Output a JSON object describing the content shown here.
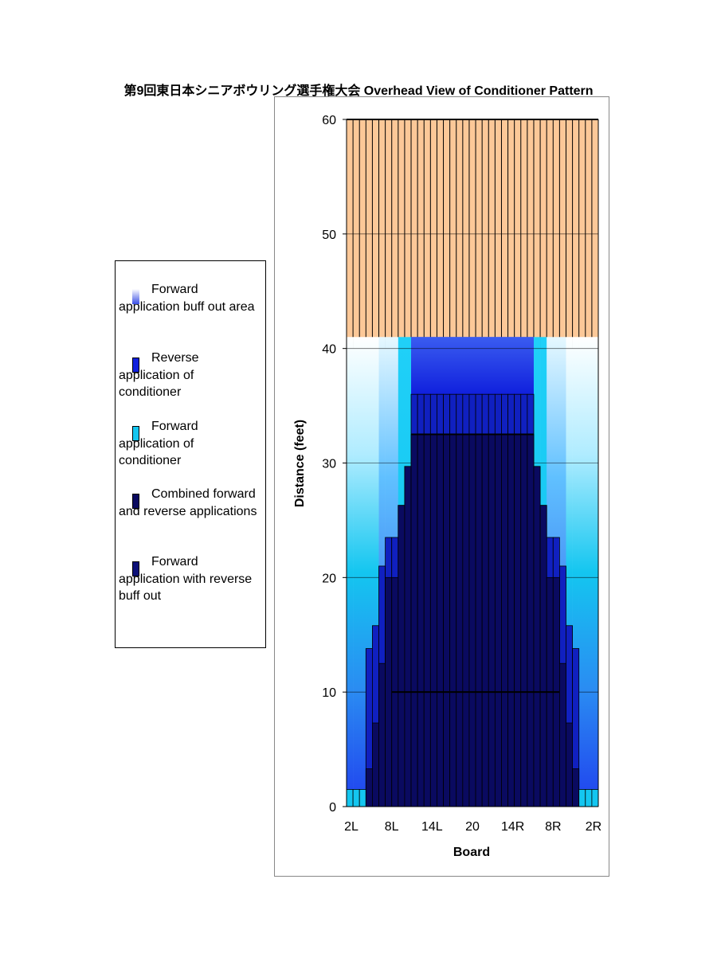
{
  "chart_data": {
    "type": "heatmap",
    "title": "第9回東日本シニアボウリング選手権大会 Overhead View of Conditioner Pattern",
    "xlabel": "Board",
    "ylabel": "Distance (feet)",
    "ylim": [
      0,
      60
    ],
    "yticks": [
      "0",
      "10",
      "20",
      "30",
      "40",
      "50",
      "60"
    ],
    "xticks": [
      "2L",
      "8L",
      "14L",
      "20",
      "14R",
      "8R",
      "2R"
    ],
    "boards": 39,
    "gridlines": true,
    "legend_position": "left",
    "series": [
      {
        "name": "Forward application buff out area",
        "color": "#3a4fe6"
      },
      {
        "name": "Reverse application of conditioner",
        "color": "#1020dd"
      },
      {
        "name": "Forward application of conditioner",
        "color": "#14c6f0"
      },
      {
        "name": "Combined forward and reverse applications",
        "color": "#0a0a60"
      },
      {
        "name": "Forward application with reverse buff out",
        "color": "#0c1078"
      }
    ],
    "oil_pattern_length_feet": 41,
    "lane_length_feet": 60,
    "combined_heights_feet": [
      1.5,
      1.5,
      1.5,
      3.3,
      7.3,
      12.5,
      20,
      20,
      26.3,
      29.7,
      32.5,
      32.5,
      32.5,
      32.5,
      32.5,
      32.5,
      32.5,
      32.5,
      32.5,
      32.5,
      32.5,
      32.5,
      32.5,
      32.5,
      32.5,
      32.5,
      32.5,
      32.5,
      32.5,
      29.7,
      26.3,
      20,
      20,
      12.5,
      7.3,
      3.3,
      1.5,
      1.5,
      1.5
    ],
    "reverse_buffout_heights_feet": [
      0,
      0,
      0,
      13.8,
      15.8,
      21,
      23.5,
      23.5,
      26.3,
      29.7,
      36,
      36,
      36,
      36,
      36,
      36,
      36,
      36,
      36,
      36,
      36,
      36,
      36,
      36,
      36,
      36,
      36,
      36,
      36,
      29.7,
      26.3,
      23.5,
      23.5,
      21,
      15.8,
      13.8,
      0,
      0,
      0
    ],
    "line_markers_feet": [
      {
        "value": 10,
        "from_board": 7,
        "to_board": 33
      },
      {
        "value": 32.5,
        "from_board": 10,
        "to_board": 29
      }
    ]
  }
}
